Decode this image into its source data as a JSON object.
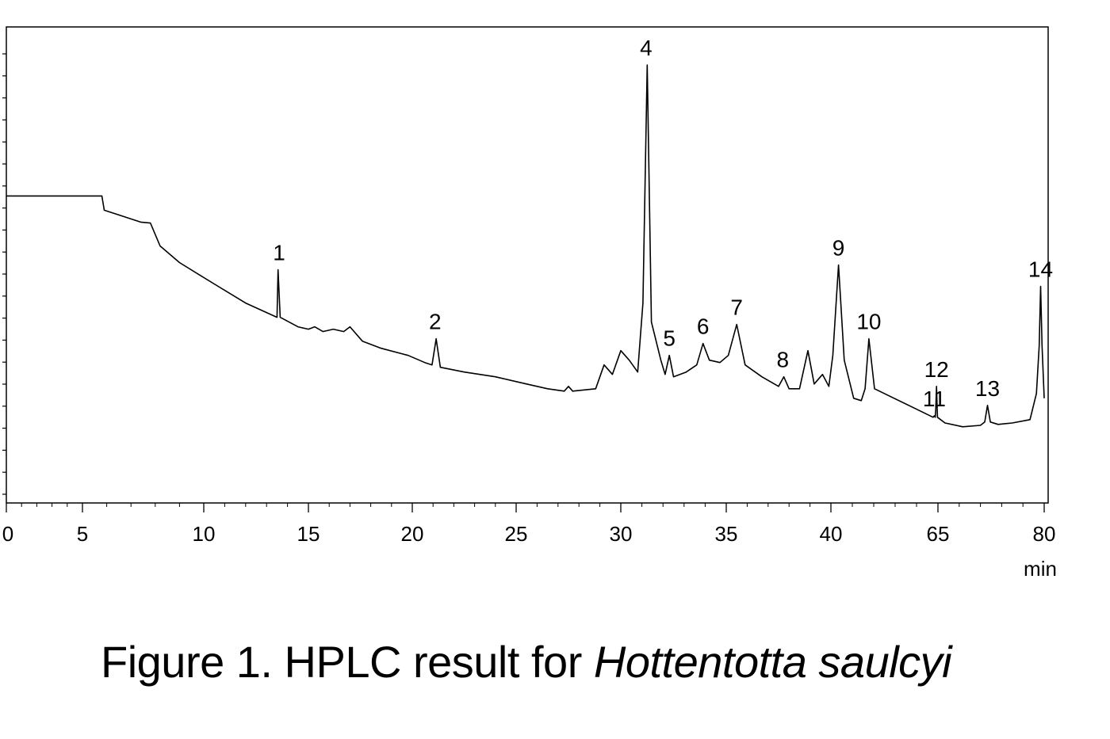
{
  "caption": {
    "prefix": "Figure 1. HPLC result for ",
    "species": "Hottentotta saulcyi"
  },
  "chart_data": {
    "type": "line",
    "title": "",
    "xlabel": "min",
    "ylabel": "",
    "x_ticks": [
      "0",
      "5",
      "10",
      "15",
      "20",
      "25",
      "30",
      "35",
      "40",
      "65",
      "80"
    ],
    "grid": false,
    "peaks": [
      {
        "label": "1",
        "time": 13.6
      },
      {
        "label": "2",
        "time": 21.1
      },
      {
        "label": "4",
        "time": 31.2
      },
      {
        "label": "5",
        "time": 32.3
      },
      {
        "label": "6",
        "time": 33.9
      },
      {
        "label": "7",
        "time": 35.5
      },
      {
        "label": "8",
        "time": 37.7
      },
      {
        "label": "9",
        "time": 40.4
      },
      {
        "label": "10",
        "time": 42.0
      },
      {
        "label": "11",
        "time": 63.5
      },
      {
        "label": "12",
        "time": 64.4
      },
      {
        "label": "13",
        "time": 72.0
      },
      {
        "label": "14",
        "time": 79.5
      }
    ],
    "trace": [
      [
        0,
        0.645
      ],
      [
        5.8,
        0.645
      ],
      [
        5.9,
        0.615
      ],
      [
        6.5,
        0.605
      ],
      [
        7.4,
        0.59
      ],
      [
        7.8,
        0.588
      ],
      [
        8.2,
        0.54
      ],
      [
        9.0,
        0.505
      ],
      [
        10.5,
        0.46
      ],
      [
        12.0,
        0.42
      ],
      [
        13.0,
        0.4
      ],
      [
        13.5,
        0.39
      ],
      [
        13.55,
        0.49
      ],
      [
        13.65,
        0.39
      ],
      [
        14.5,
        0.37
      ],
      [
        15.0,
        0.365
      ],
      [
        15.3,
        0.37
      ],
      [
        15.7,
        0.36
      ],
      [
        16.2,
        0.365
      ],
      [
        16.7,
        0.36
      ],
      [
        17.0,
        0.37
      ],
      [
        17.6,
        0.34
      ],
      [
        18.5,
        0.325
      ],
      [
        19.8,
        0.31
      ],
      [
        20.6,
        0.295
      ],
      [
        20.95,
        0.29
      ],
      [
        21.15,
        0.345
      ],
      [
        21.35,
        0.285
      ],
      [
        22.5,
        0.275
      ],
      [
        24.0,
        0.265
      ],
      [
        25.5,
        0.25
      ],
      [
        26.5,
        0.24
      ],
      [
        27.3,
        0.235
      ],
      [
        27.5,
        0.245
      ],
      [
        27.7,
        0.235
      ],
      [
        28.8,
        0.24
      ],
      [
        29.2,
        0.29
      ],
      [
        29.6,
        0.27
      ],
      [
        30.0,
        0.32
      ],
      [
        30.4,
        0.3
      ],
      [
        30.8,
        0.275
      ],
      [
        31.05,
        0.42
      ],
      [
        31.25,
        0.92
      ],
      [
        31.45,
        0.38
      ],
      [
        31.9,
        0.3
      ],
      [
        32.1,
        0.27
      ],
      [
        32.3,
        0.31
      ],
      [
        32.5,
        0.265
      ],
      [
        33.1,
        0.275
      ],
      [
        33.6,
        0.29
      ],
      [
        33.9,
        0.335
      ],
      [
        34.2,
        0.3
      ],
      [
        34.7,
        0.295
      ],
      [
        35.1,
        0.31
      ],
      [
        35.5,
        0.375
      ],
      [
        35.9,
        0.29
      ],
      [
        36.7,
        0.265
      ],
      [
        37.5,
        0.245
      ],
      [
        37.75,
        0.265
      ],
      [
        38.0,
        0.24
      ],
      [
        38.5,
        0.24
      ],
      [
        38.9,
        0.32
      ],
      [
        39.2,
        0.25
      ],
      [
        39.6,
        0.27
      ],
      [
        39.9,
        0.245
      ],
      [
        40.1,
        0.31
      ],
      [
        40.4,
        0.5
      ],
      [
        40.7,
        0.3
      ],
      [
        41.2,
        0.22
      ],
      [
        41.6,
        0.215
      ],
      [
        41.8,
        0.24
      ],
      [
        42.0,
        0.345
      ],
      [
        42.3,
        0.24
      ],
      [
        63.0,
        0.18
      ],
      [
        63.5,
        0.183
      ],
      [
        63.9,
        0.18
      ],
      [
        64.1,
        0.195
      ],
      [
        64.4,
        0.245
      ],
      [
        64.8,
        0.18
      ],
      [
        66.0,
        0.168
      ],
      [
        68.5,
        0.16
      ],
      [
        71.0,
        0.163
      ],
      [
        71.6,
        0.17
      ],
      [
        72.0,
        0.205
      ],
      [
        72.4,
        0.17
      ],
      [
        73.5,
        0.165
      ],
      [
        75.5,
        0.168
      ],
      [
        78.0,
        0.175
      ],
      [
        78.9,
        0.23
      ],
      [
        79.3,
        0.33
      ],
      [
        79.5,
        0.455
      ],
      [
        79.7,
        0.33
      ],
      [
        80.0,
        0.22
      ]
    ]
  }
}
